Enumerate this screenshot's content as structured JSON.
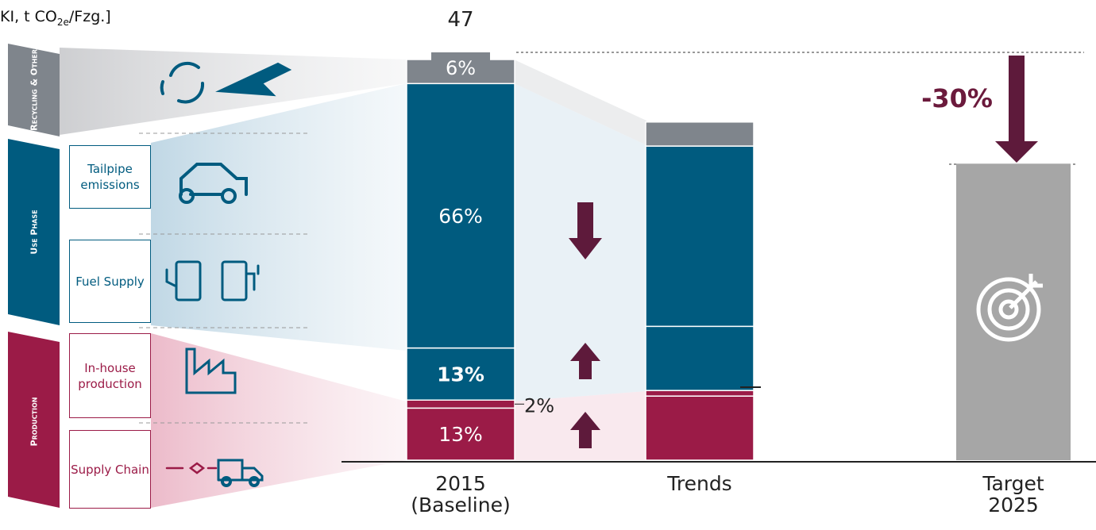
{
  "chart_data": {
    "type": "stacked_bar",
    "title_parts": [
      "KI, t CO",
      "2e",
      "/Fzg.]"
    ],
    "total": 47,
    "categories": [
      "2015\n(Baseline)",
      "Trends",
      "Target\n2025"
    ],
    "ylim": [
      0,
      100
    ],
    "series": [
      {
        "name": "Supply Chain",
        "color": "#9b1b47",
        "values": [
          13,
          16,
          null
        ],
        "value_labels": [
          "13%",
          null,
          null
        ]
      },
      {
        "name": "In-house production",
        "color": "#9b1b47",
        "values": [
          2,
          1.4,
          null
        ],
        "value_labels": [
          "2%",
          null,
          null
        ]
      },
      {
        "name": "Fuel Supply",
        "color": "#005b7f",
        "values": [
          13,
          16,
          null
        ],
        "value_labels": [
          "13%",
          null,
          null
        ]
      },
      {
        "name": "Tailpipe emissions",
        "color": "#005b7f",
        "values": [
          66,
          45,
          null
        ],
        "value_labels": [
          "66%",
          null,
          null
        ]
      },
      {
        "name": "Recycling & Others",
        "color": "#7f858c",
        "values": [
          6,
          6,
          null
        ],
        "value_labels": [
          "6%",
          null,
          null
        ]
      }
    ],
    "target": {
      "value": 74,
      "color": "#a6a6a6"
    },
    "groups": [
      "Use Phase",
      "Production"
    ],
    "annotation": "-30%"
  }
}
